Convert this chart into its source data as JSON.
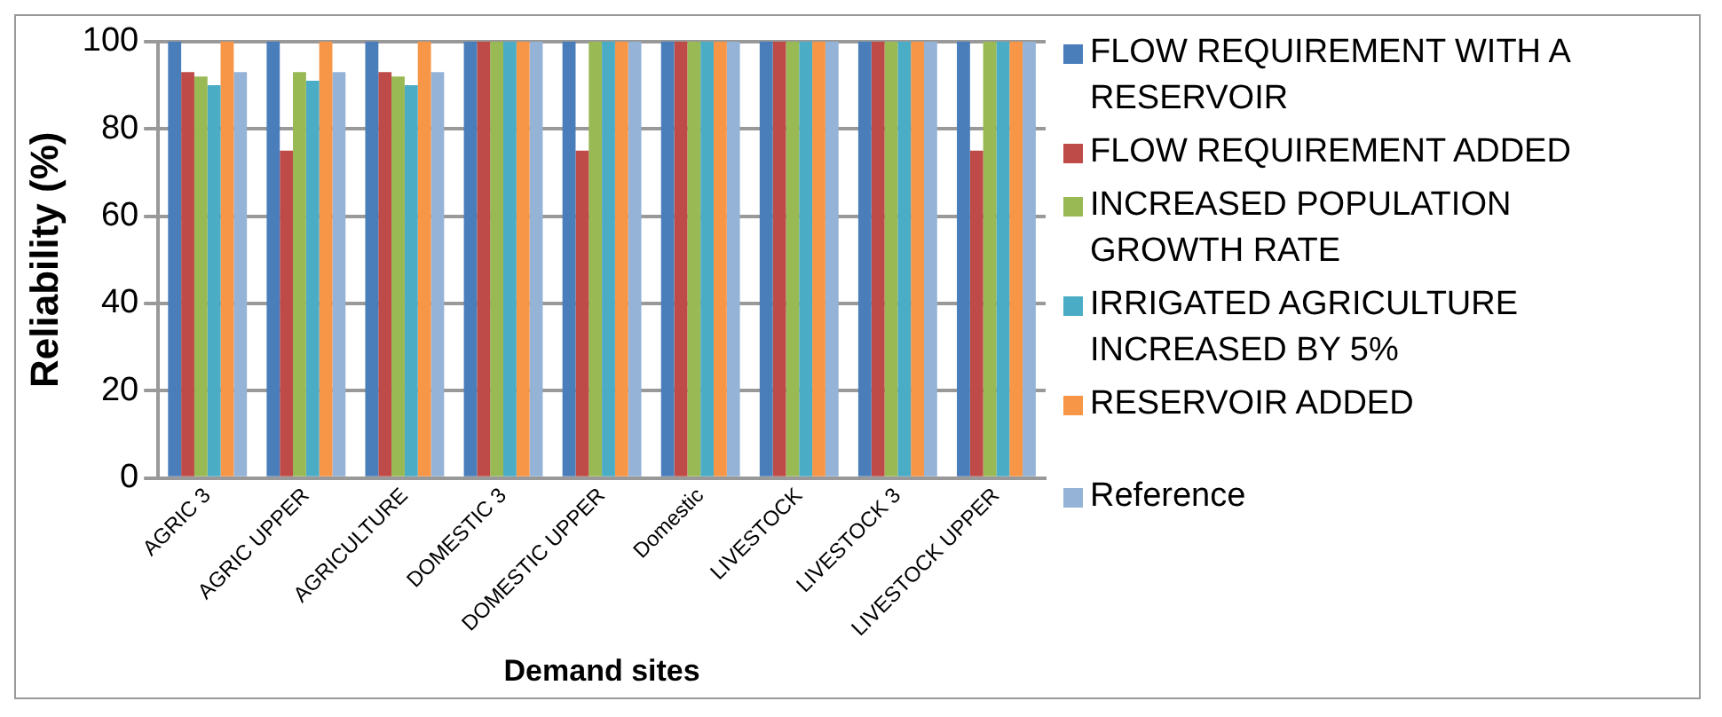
{
  "chart_data": {
    "type": "bar",
    "xlabel": "Demand sites",
    "ylabel": "Reliability (%)",
    "categories": [
      "AGRIC 3",
      "AGRIC UPPER",
      "AGRICULTURE",
      "DOMESTIC 3",
      "DOMESTIC UPPER",
      "Domestic",
      "LIVESTOCK",
      "LIVESTOCK 3",
      "LIVESTOCK UPPER"
    ],
    "series": [
      {
        "name": "FLOW REQUIREMENT  WITH A RESERVOIR",
        "color": "#4a7ebb",
        "values": [
          100,
          100,
          100,
          100,
          100,
          100,
          100,
          100,
          100
        ]
      },
      {
        "name": "FLOW REQUIREMENT ADDED",
        "color": "#be4b48",
        "values": [
          93,
          75,
          93,
          100,
          75,
          100,
          100,
          100,
          75
        ]
      },
      {
        "name": "INCREASED POPULATION GROWTH RATE",
        "color": "#98b954",
        "values": [
          92,
          93,
          92,
          100,
          100,
          100,
          100,
          100,
          100
        ]
      },
      {
        "name": "IRRIGATED AGRICULTURE INCREASED BY 5%",
        "color": "#4bacc6",
        "values": [
          90,
          91,
          90,
          100,
          100,
          100,
          100,
          100,
          100
        ]
      },
      {
        "name": "RESERVOIR ADDED",
        "color": "#f79646",
        "values": [
          100,
          100,
          100,
          100,
          100,
          100,
          100,
          100,
          100
        ]
      },
      {
        "name": "Reference",
        "color": "#95b3d7",
        "values": [
          93,
          93,
          93,
          100,
          100,
          100,
          100,
          100,
          100
        ]
      }
    ],
    "ylim": [
      0,
      100
    ],
    "yticks": [
      0,
      20,
      40,
      60,
      80,
      100
    ],
    "grid": "y",
    "legend": "right"
  }
}
